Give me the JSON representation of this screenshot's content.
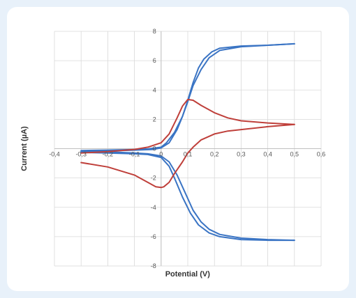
{
  "chart_data": {
    "type": "line",
    "xlabel": "Potential (V)",
    "ylabel": "Current (µA)",
    "xlim": [
      -0.4,
      0.6
    ],
    "ylim": [
      -8,
      8
    ],
    "x_ticks": [
      -0.4,
      -0.3,
      -0.2,
      -0.1,
      0,
      0.1,
      0.2,
      0.3,
      0.4,
      0.5,
      0.6
    ],
    "y_ticks": [
      -8,
      -6,
      -4,
      -2,
      0,
      2,
      4,
      6,
      8
    ],
    "x_tick_labels": [
      "-0,4",
      "-0,3",
      "-0,2",
      "-0,1",
      "0",
      "0,1",
      "0,2",
      "0,3",
      "0,4",
      "0,5",
      "0,6"
    ],
    "y_tick_labels": [
      "-8",
      "-6",
      "-4",
      "-2",
      "0",
      "2",
      "4",
      "6",
      "8"
    ],
    "grid": true,
    "colors": {
      "blue": "#3a74c4",
      "red": "#bf3f3a",
      "grid": "#d9d9d9",
      "axis": "#bfbfbf"
    },
    "series": [
      {
        "color": "#3a74c4",
        "points": [
          [
            -0.3,
            -0.18
          ],
          [
            -0.2,
            -0.15
          ],
          [
            -0.1,
            -0.1
          ],
          [
            -0.03,
            -0.05
          ],
          [
            0,
            0.05
          ],
          [
            0.03,
            0.4
          ],
          [
            0.06,
            1.3
          ],
          [
            0.08,
            2.2
          ],
          [
            0.1,
            3.3
          ],
          [
            0.12,
            4.5
          ],
          [
            0.14,
            5.5
          ],
          [
            0.16,
            6.1
          ],
          [
            0.19,
            6.6
          ],
          [
            0.22,
            6.85
          ],
          [
            0.3,
            7.0
          ],
          [
            0.4,
            7.05
          ],
          [
            0.5,
            7.15
          ]
        ]
      },
      {
        "color": "#3a74c4",
        "points": [
          [
            0.5,
            7.15
          ],
          [
            0.4,
            7.05
          ],
          [
            0.3,
            6.95
          ],
          [
            0.22,
            6.7
          ],
          [
            0.18,
            6.2
          ],
          [
            0.15,
            5.4
          ],
          [
            0.12,
            4.3
          ],
          [
            0.1,
            3.2
          ],
          [
            0.08,
            2.2
          ],
          [
            0.05,
            1.1
          ],
          [
            0.02,
            0.4
          ],
          [
            0,
            0.1
          ],
          [
            -0.05,
            -0.02
          ],
          [
            -0.1,
            -0.06
          ],
          [
            -0.2,
            -0.1
          ],
          [
            -0.3,
            -0.13
          ]
        ]
      },
      {
        "color": "#3a74c4",
        "points": [
          [
            -0.3,
            -0.2
          ],
          [
            -0.2,
            -0.22
          ],
          [
            -0.1,
            -0.3
          ],
          [
            -0.05,
            -0.35
          ],
          [
            0,
            -0.5
          ],
          [
            0.03,
            -0.9
          ],
          [
            0.06,
            -1.8
          ],
          [
            0.09,
            -3.0
          ],
          [
            0.12,
            -4.2
          ],
          [
            0.15,
            -5.0
          ],
          [
            0.18,
            -5.5
          ],
          [
            0.22,
            -5.85
          ],
          [
            0.3,
            -6.1
          ],
          [
            0.4,
            -6.2
          ],
          [
            0.5,
            -6.25
          ]
        ]
      },
      {
        "color": "#3a74c4",
        "points": [
          [
            0.5,
            -6.25
          ],
          [
            0.4,
            -6.25
          ],
          [
            0.3,
            -6.2
          ],
          [
            0.22,
            -6.0
          ],
          [
            0.18,
            -5.75
          ],
          [
            0.14,
            -5.2
          ],
          [
            0.11,
            -4.4
          ],
          [
            0.08,
            -3.3
          ],
          [
            0.05,
            -2.0
          ],
          [
            0.03,
            -1.2
          ],
          [
            0,
            -0.6
          ],
          [
            -0.05,
            -0.4
          ],
          [
            -0.1,
            -0.35
          ],
          [
            -0.2,
            -0.3
          ],
          [
            -0.3,
            -0.25
          ]
        ]
      },
      {
        "color": "#bf3f3a",
        "points": [
          [
            -0.3,
            -0.3
          ],
          [
            -0.2,
            -0.2
          ],
          [
            -0.1,
            -0.05
          ],
          [
            -0.05,
            0.1
          ],
          [
            0,
            0.4
          ],
          [
            0.03,
            1.0
          ],
          [
            0.06,
            2.1
          ],
          [
            0.08,
            2.9
          ],
          [
            0.1,
            3.35
          ],
          [
            0.12,
            3.3
          ],
          [
            0.15,
            2.95
          ],
          [
            0.2,
            2.45
          ],
          [
            0.25,
            2.1
          ],
          [
            0.3,
            1.9
          ],
          [
            0.4,
            1.75
          ],
          [
            0.5,
            1.65
          ]
        ]
      },
      {
        "color": "#bf3f3a",
        "points": [
          [
            0.5,
            1.65
          ],
          [
            0.4,
            1.5
          ],
          [
            0.3,
            1.3
          ],
          [
            0.25,
            1.2
          ],
          [
            0.2,
            1.0
          ],
          [
            0.15,
            0.6
          ],
          [
            0.12,
            0.1
          ],
          [
            0.1,
            -0.3
          ],
          [
            0.08,
            -0.9
          ],
          [
            0.05,
            -1.7
          ],
          [
            0.03,
            -2.3
          ],
          [
            0.01,
            -2.6
          ],
          [
            0,
            -2.65
          ],
          [
            -0.02,
            -2.6
          ],
          [
            -0.05,
            -2.3
          ],
          [
            -0.1,
            -1.8
          ],
          [
            -0.2,
            -1.25
          ],
          [
            -0.3,
            -0.95
          ]
        ]
      }
    ]
  }
}
